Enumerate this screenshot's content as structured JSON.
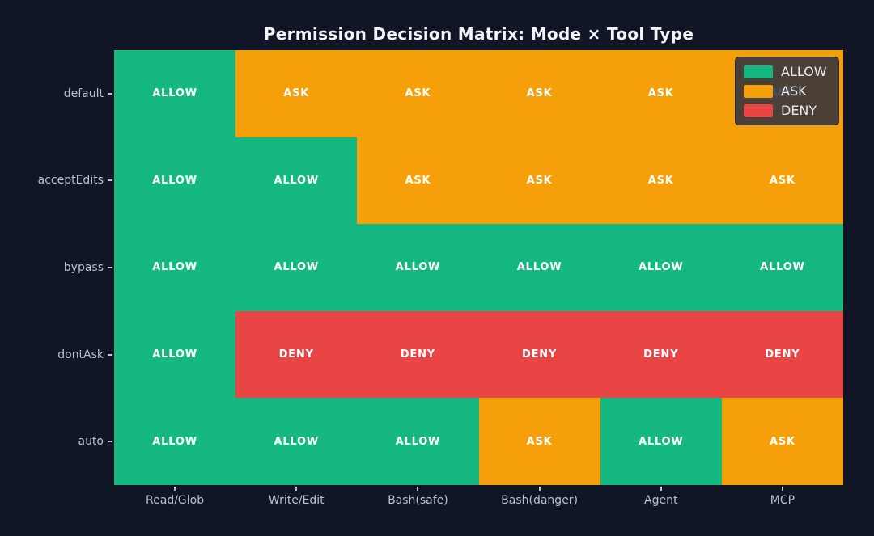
{
  "title": "Permission Decision Matrix: Mode × Tool Type",
  "chart_data": {
    "type": "heatmap",
    "rows": [
      "default",
      "acceptEdits",
      "bypass",
      "dontAsk",
      "auto"
    ],
    "columns": [
      "Read/Glob",
      "Write/Edit",
      "Bash(safe)",
      "Bash(danger)",
      "Agent",
      "MCP"
    ],
    "cells": [
      [
        "ALLOW",
        "ASK",
        "ASK",
        "ASK",
        "ASK",
        "ASK"
      ],
      [
        "ALLOW",
        "ALLOW",
        "ASK",
        "ASK",
        "ASK",
        "ASK"
      ],
      [
        "ALLOW",
        "ALLOW",
        "ALLOW",
        "ALLOW",
        "ALLOW",
        "ALLOW"
      ],
      [
        "ALLOW",
        "DENY",
        "DENY",
        "DENY",
        "DENY",
        "DENY"
      ],
      [
        "ALLOW",
        "ALLOW",
        "ALLOW",
        "ASK",
        "ALLOW",
        "ASK"
      ]
    ],
    "value_colors": {
      "ALLOW": "#16b881",
      "ASK": "#f5a00b",
      "DENY": "#e94545"
    },
    "legend": {
      "position": "upper-right",
      "entries": [
        {
          "label": "ALLOW",
          "color": "#16b881"
        },
        {
          "label": "ASK",
          "color": "#f5a00b"
        },
        {
          "label": "DENY",
          "color": "#e94545"
        }
      ]
    },
    "grid": false,
    "xlabel": "",
    "ylabel": ""
  },
  "colors": {
    "background": "#111627",
    "title_text": "#f2f4f8",
    "axis_label": "#b9c0cf",
    "cell_text": "#ffffff",
    "legend_text": "#e9eaec",
    "legend_background": "rgba(31,40,64,0.8)"
  }
}
